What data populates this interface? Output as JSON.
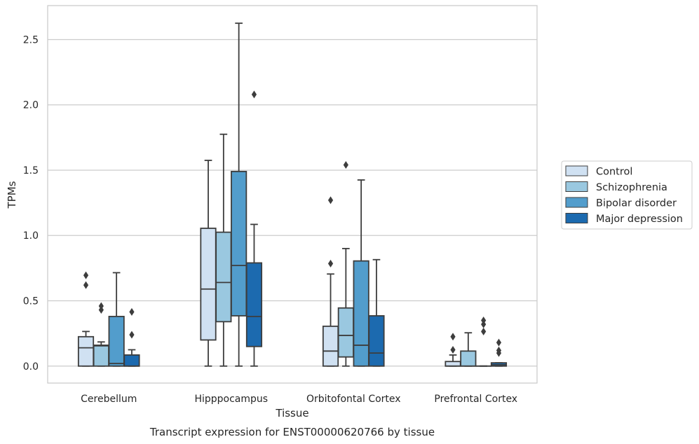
{
  "chart_data": {
    "type": "box",
    "title": "Transcript expression for ENST00000620766 by tissue",
    "xlabel": "Tissue",
    "ylabel": "TPMs",
    "ylim": [
      -0.13,
      2.76
    ],
    "yticks": [
      "0.0",
      "0.5",
      "1.0",
      "1.5",
      "2.0",
      "2.5"
    ],
    "categories": [
      "Cerebellum",
      "Hipppocampus",
      "Orbitofontal Cortex",
      "Prefrontal Cortex"
    ],
    "grid": "horizontal",
    "legend_position": "right-outside",
    "series": [
      {
        "name": "Control",
        "color": "#d0e1f2",
        "boxes": [
          {
            "min": 0.0,
            "q1": 0.0,
            "median": 0.14,
            "q3": 0.225,
            "max": 0.265,
            "outliers": [
              0.62,
              0.695
            ]
          },
          {
            "min": 0.0,
            "q1": 0.2,
            "median": 0.59,
            "q3": 1.055,
            "max": 1.575,
            "outliers": []
          },
          {
            "min": 0.0,
            "q1": 0.0,
            "median": 0.115,
            "q3": 0.305,
            "max": 0.705,
            "outliers": [
              0.785,
              1.27
            ]
          },
          {
            "min": 0.0,
            "q1": 0.0,
            "median": 0.0,
            "q3": 0.035,
            "max": 0.085,
            "outliers": [
              0.125,
              0.225
            ]
          }
        ]
      },
      {
        "name": "Schizophrenia",
        "color": "#9ac8e0",
        "boxes": [
          {
            "min": 0.0,
            "q1": 0.0,
            "median": 0.155,
            "q3": 0.16,
            "max": 0.185,
            "outliers": [
              0.43,
              0.46
            ]
          },
          {
            "min": 0.0,
            "q1": 0.34,
            "median": 0.64,
            "q3": 1.025,
            "max": 1.775,
            "outliers": []
          },
          {
            "min": 0.0,
            "q1": 0.07,
            "median": 0.235,
            "q3": 0.445,
            "max": 0.9,
            "outliers": [
              1.54
            ]
          },
          {
            "min": 0.0,
            "q1": 0.0,
            "median": 0.0,
            "q3": 0.115,
            "max": 0.255,
            "outliers": []
          }
        ]
      },
      {
        "name": "Bipolar disorder",
        "color": "#529dcc",
        "boxes": [
          {
            "min": 0.0,
            "q1": 0.0,
            "median": 0.02,
            "q3": 0.38,
            "max": 0.715,
            "outliers": []
          },
          {
            "min": 0.0,
            "q1": 0.385,
            "median": 0.77,
            "q3": 1.49,
            "max": 2.625,
            "outliers": []
          },
          {
            "min": 0.0,
            "q1": 0.0,
            "median": 0.16,
            "q3": 0.805,
            "max": 1.425,
            "outliers": []
          },
          {
            "min": 0.0,
            "q1": 0.0,
            "median": 0.0,
            "q3": 0.0,
            "max": 0.0,
            "outliers": [
              0.265,
              0.32,
              0.35
            ]
          }
        ]
      },
      {
        "name": "Major depression",
        "color": "#1c6aaf",
        "boxes": [
          {
            "min": 0.0,
            "q1": 0.0,
            "median": 0.0,
            "q3": 0.085,
            "max": 0.125,
            "outliers": [
              0.24,
              0.415
            ]
          },
          {
            "min": 0.0,
            "q1": 0.15,
            "median": 0.38,
            "q3": 0.79,
            "max": 1.085,
            "outliers": [
              2.08
            ]
          },
          {
            "min": 0.0,
            "q1": 0.0,
            "median": 0.1,
            "q3": 0.385,
            "max": 0.815,
            "outliers": []
          },
          {
            "min": 0.0,
            "q1": 0.0,
            "median": 0.01,
            "q3": 0.025,
            "max": 0.025,
            "outliers": [
              0.1,
              0.12,
              0.18
            ]
          }
        ]
      }
    ]
  }
}
